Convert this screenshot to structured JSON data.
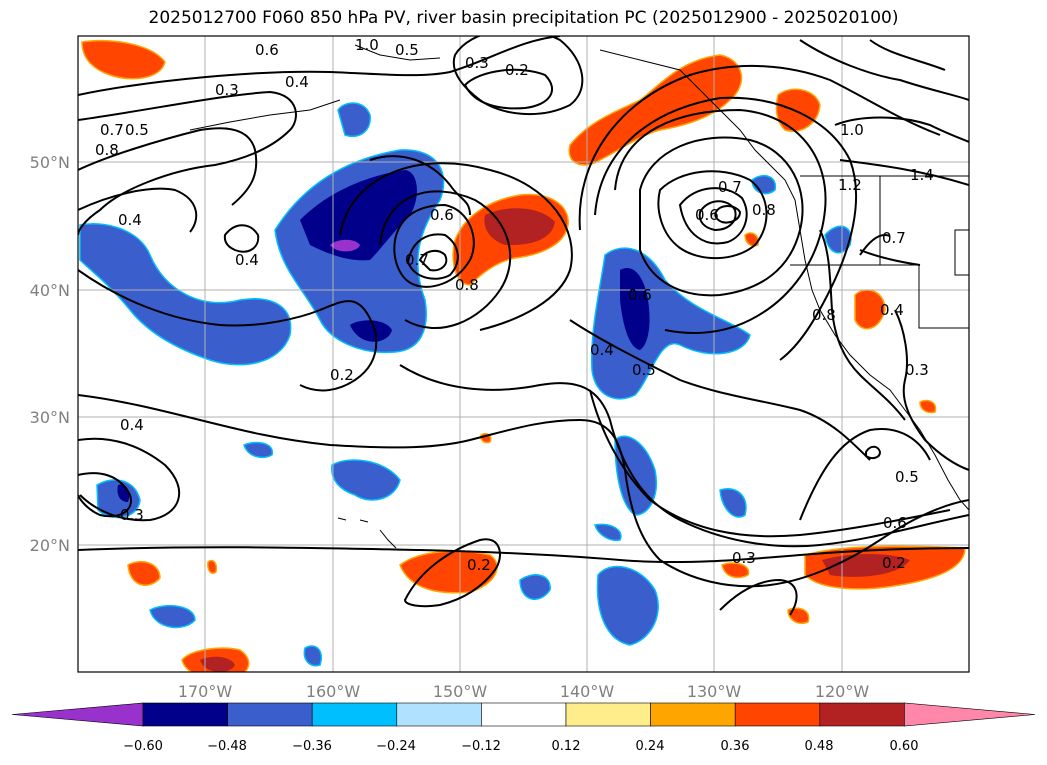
{
  "title": "2025012700 F060 850 hPa PV, river basin precipitation PC (2025012900 - 2025020100)",
  "axes": {
    "lon_ticks": [
      "170°W",
      "160°W",
      "150°W",
      "140°W",
      "130°W",
      "120°W"
    ],
    "lat_ticks": [
      "50°N",
      "40°N",
      "30°N",
      "20°N"
    ]
  },
  "colorbar": {
    "colors": [
      "#9932cc",
      "#00008b",
      "#3a5fcd",
      "#00bfff",
      "#b0e2ff",
      "#ffffff",
      "#ffec8b",
      "#ffa500",
      "#ff4500",
      "#b22222",
      "#ff88aa"
    ],
    "tick_labels": [
      "−0.60",
      "−0.48",
      "−0.36",
      "−0.24",
      "−0.12",
      "0.12",
      "0.24",
      "0.36",
      "0.48",
      "0.60"
    ]
  },
  "contour_labels": [
    "0.6",
    "0.3",
    "0.4",
    "1.0",
    "0.5",
    "0.3",
    "0.2",
    "0.8",
    "0.7",
    "0.5",
    "0.6",
    "0.4",
    "0.4",
    "0.6",
    "0.7",
    "0.8",
    "0.2",
    "0.7",
    "0.6",
    "0.8",
    "1.0",
    "1.2",
    "1.4",
    "0.7",
    "0.8",
    "0.4",
    "0.3",
    "0.4",
    "0.5",
    "0.4",
    "0.3",
    "0.5",
    "0.6",
    "0.3",
    "0.2",
    "0.2"
  ]
}
